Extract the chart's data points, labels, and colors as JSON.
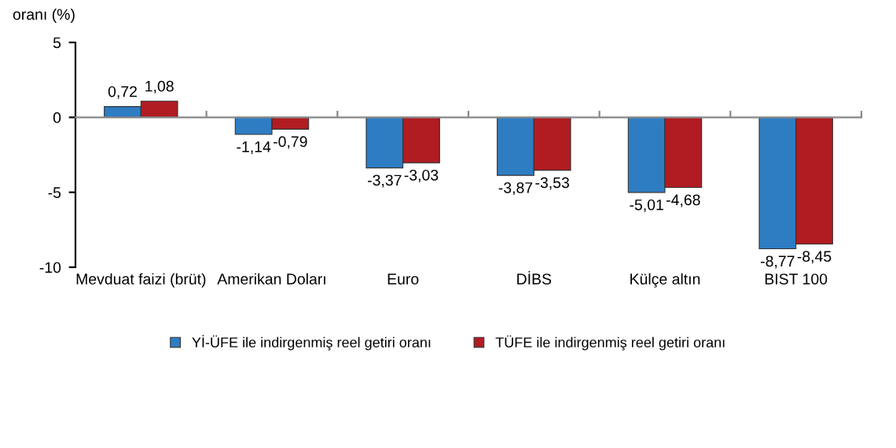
{
  "chart_data": {
    "type": "bar",
    "ylabel": "oranı (%)",
    "categories": [
      "Mevduat faizi (brüt)",
      "Amerikan Doları",
      "Euro",
      "DİBS",
      "Külçe altın",
      "BIST 100"
    ],
    "series": [
      {
        "name": "Yİ-ÜFE ile indirgenmiş reel getiri oranı",
        "color": "#2e7dc3",
        "values": [
          0.72,
          -1.14,
          -3.37,
          -3.87,
          -5.01,
          -8.77
        ],
        "value_labels": [
          "0,72",
          "-1,14",
          "-3,37",
          "-3,87",
          "-5,01",
          "-8,77"
        ]
      },
      {
        "name": "TÜFE ile indirgenmiş reel getiri oranı",
        "color": "#b01c22",
        "values": [
          1.08,
          -0.79,
          -3.03,
          -3.53,
          -4.68,
          -8.45
        ],
        "value_labels": [
          "1,08",
          "-0,79",
          "-3,03",
          "-3,53",
          "-4,68",
          "-8,45"
        ]
      }
    ],
    "ylim": [
      -10,
      5
    ],
    "yticks": [
      -10,
      -5,
      0,
      5
    ],
    "legend": "bottom"
  }
}
